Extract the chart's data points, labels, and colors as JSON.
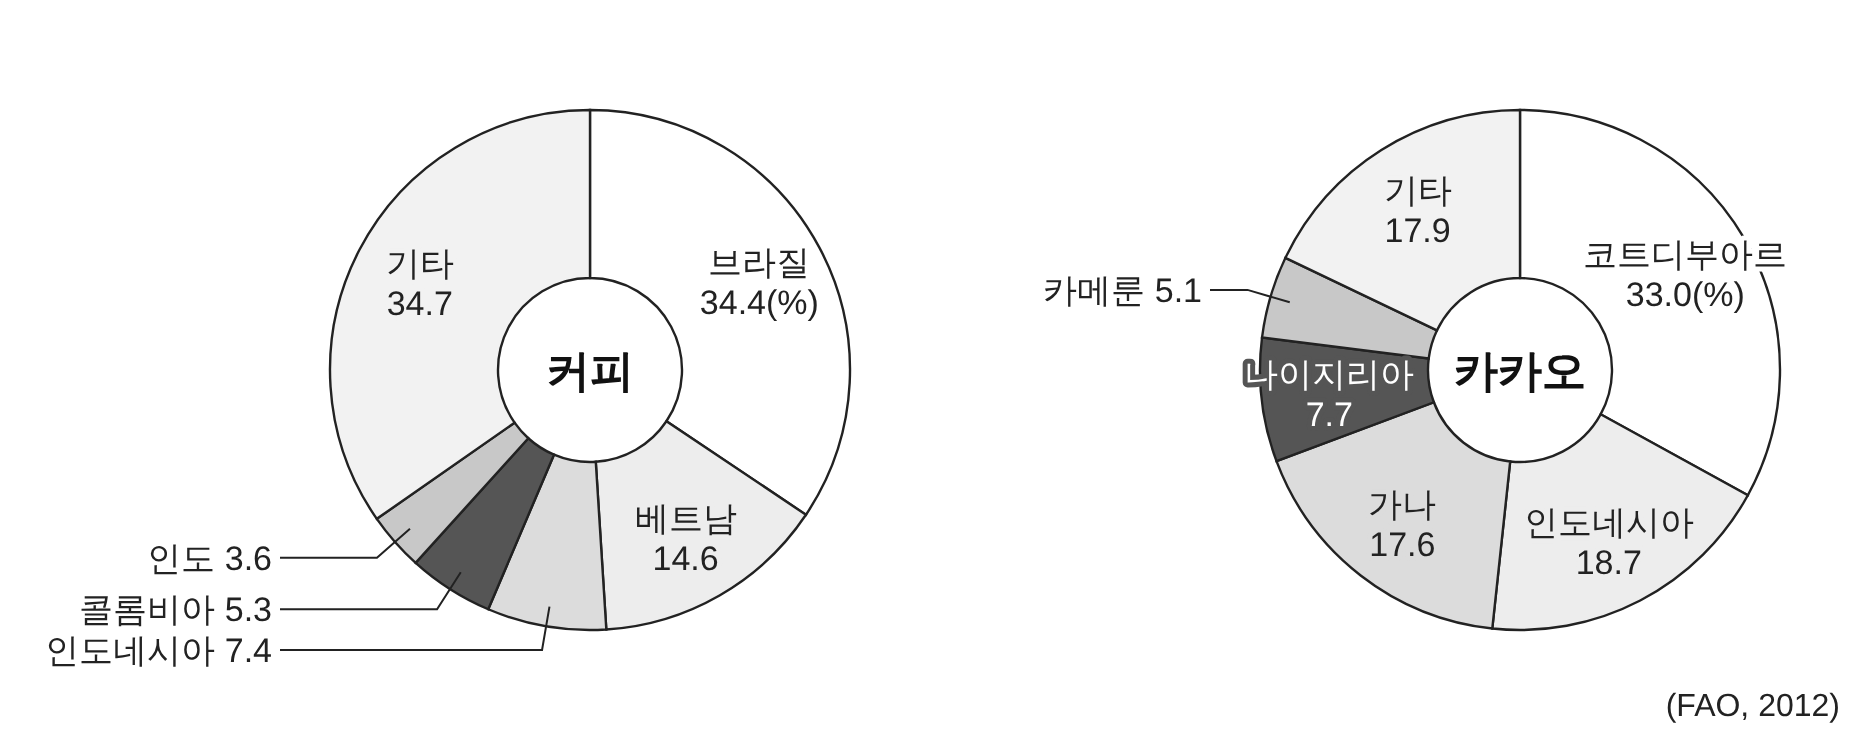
{
  "chart_data": [
    {
      "type": "donut",
      "title": "커피",
      "categories": [
        "브라질",
        "베트남",
        "인도네시아",
        "콜롬비아",
        "인도",
        "기타"
      ],
      "values": [
        34.4,
        14.6,
        7.4,
        5.3,
        3.6,
        34.7
      ],
      "value_labels": [
        "34.4(%)",
        "14.6",
        "7.4",
        "5.3",
        "3.6",
        "34.7"
      ],
      "colors": [
        "#ffffff",
        "#ededed",
        "#dcdcdc",
        "#555555",
        "#c8c8c8",
        "#f2f2f2"
      ]
    },
    {
      "type": "donut",
      "title": "카카오",
      "categories": [
        "코트디부아르",
        "인도네시아",
        "가나",
        "나이지리아",
        "카메룬",
        "기타"
      ],
      "values": [
        33.0,
        18.7,
        17.6,
        7.7,
        5.1,
        17.9
      ],
      "value_labels": [
        "33.0(%)",
        "18.7",
        "17.6",
        "7.7",
        "5.1",
        "17.9"
      ],
      "colors": [
        "#ffffff",
        "#ededed",
        "#dcdcdc",
        "#555555",
        "#c8c8c8",
        "#f2f2f2"
      ],
      "annotations": [
        "(FAO, 2012)"
      ]
    }
  ]
}
